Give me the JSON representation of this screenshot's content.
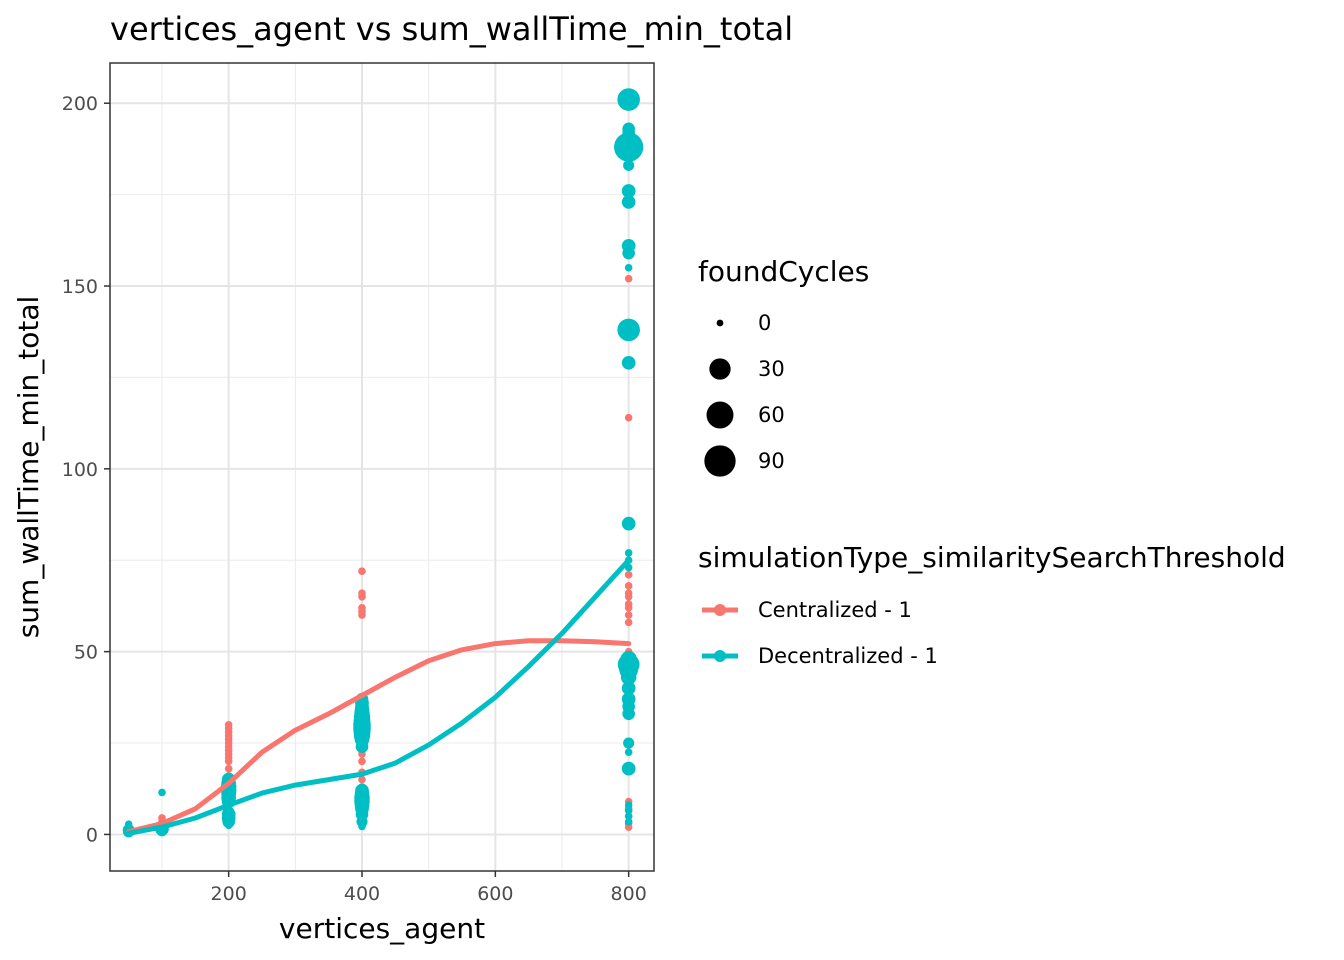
{
  "chart_data": {
    "type": "scatter",
    "title": "vertices_agent  vs  sum_wallTime_min_total",
    "xlabel": "vertices_agent",
    "ylabel": "sum_wallTime_min_total",
    "xlim": [
      22,
      838
    ],
    "ylim": [
      -10,
      211
    ],
    "xticks": [
      200,
      400,
      600,
      800
    ],
    "yticks": [
      0,
      50,
      100,
      150,
      200
    ],
    "grid": true,
    "legend_position": "right",
    "size_legend": {
      "title": "foundCycles",
      "entries": [
        {
          "label": "0",
          "value": 0
        },
        {
          "label": "30",
          "value": 30
        },
        {
          "label": "60",
          "value": 60
        },
        {
          "label": "90",
          "value": 90
        }
      ]
    },
    "color_legend": {
      "title": "simulationType_similaritySearchThreshold"
    },
    "series": [
      {
        "name": "Centralized - 1",
        "color": "#F8766D",
        "points": [
          [
            50,
            0.5,
            0
          ],
          [
            50,
            1.2,
            0
          ],
          [
            100,
            2.5,
            0
          ],
          [
            100,
            3.5,
            0
          ],
          [
            100,
            4.5,
            0
          ],
          [
            200,
            8,
            0
          ],
          [
            200,
            10,
            0
          ],
          [
            200,
            12,
            0
          ],
          [
            200,
            14,
            0
          ],
          [
            200,
            16,
            0
          ],
          [
            200,
            18,
            0
          ],
          [
            200,
            20,
            0
          ],
          [
            200,
            21,
            0
          ],
          [
            200,
            22,
            0
          ],
          [
            200,
            23,
            0
          ],
          [
            200,
            24,
            0
          ],
          [
            200,
            25,
            0
          ],
          [
            200,
            26,
            0
          ],
          [
            200,
            27,
            0
          ],
          [
            200,
            28,
            0
          ],
          [
            200,
            29,
            0
          ],
          [
            200,
            30,
            0
          ],
          [
            400,
            13,
            0
          ],
          [
            400,
            15,
            0
          ],
          [
            400,
            17,
            0
          ],
          [
            400,
            20,
            0
          ],
          [
            400,
            22,
            0
          ],
          [
            400,
            25,
            0
          ],
          [
            400,
            35,
            0
          ],
          [
            400,
            36,
            0
          ],
          [
            400,
            37,
            0
          ],
          [
            400,
            60,
            0
          ],
          [
            400,
            61,
            0
          ],
          [
            400,
            62,
            0
          ],
          [
            400,
            65,
            0
          ],
          [
            400,
            66,
            0
          ],
          [
            400,
            72,
            0
          ],
          [
            800,
            2,
            0
          ],
          [
            800,
            3,
            0
          ],
          [
            800,
            5,
            0
          ],
          [
            800,
            7,
            0
          ],
          [
            800,
            9,
            0
          ],
          [
            800,
            44,
            0
          ],
          [
            800,
            46,
            0
          ],
          [
            800,
            50,
            0
          ],
          [
            800,
            58,
            0
          ],
          [
            800,
            60,
            0
          ],
          [
            800,
            62,
            0
          ],
          [
            800,
            63,
            0
          ],
          [
            800,
            65,
            0
          ],
          [
            800,
            66,
            0
          ],
          [
            800,
            68,
            0
          ],
          [
            800,
            71,
            0
          ],
          [
            800,
            114,
            0
          ],
          [
            800,
            152,
            0
          ]
        ],
        "smooth": [
          [
            50,
            0.8
          ],
          [
            100,
            3
          ],
          [
            150,
            7
          ],
          [
            200,
            14
          ],
          [
            250,
            22.5
          ],
          [
            300,
            28.5
          ],
          [
            350,
            33
          ],
          [
            400,
            38
          ],
          [
            450,
            43
          ],
          [
            500,
            47.5
          ],
          [
            550,
            50.5
          ],
          [
            600,
            52.2
          ],
          [
            650,
            53
          ],
          [
            700,
            53
          ],
          [
            750,
            52.7
          ],
          [
            800,
            52.2
          ]
        ]
      },
      {
        "name": "Decentralized - 1",
        "color": "#00BFC4",
        "points": [
          [
            50,
            0.3,
            0
          ],
          [
            50,
            0.7,
            2
          ],
          [
            50,
            1.2,
            3
          ],
          [
            50,
            2.8,
            0
          ],
          [
            100,
            1,
            2
          ],
          [
            100,
            1.5,
            6
          ],
          [
            100,
            2,
            4
          ],
          [
            100,
            11.5,
            0
          ],
          [
            200,
            2.5,
            0
          ],
          [
            200,
            3.5,
            4
          ],
          [
            200,
            4.5,
            6
          ],
          [
            200,
            5.5,
            6
          ],
          [
            200,
            6,
            3
          ],
          [
            200,
            9,
            6
          ],
          [
            200,
            10,
            8
          ],
          [
            200,
            11,
            8
          ],
          [
            200,
            12,
            10
          ],
          [
            200,
            13,
            10
          ],
          [
            200,
            14,
            8
          ],
          [
            200,
            15,
            6
          ],
          [
            400,
            2.2,
            0
          ],
          [
            400,
            3.5,
            2
          ],
          [
            400,
            5.5,
            4
          ],
          [
            400,
            7,
            6
          ],
          [
            400,
            8,
            8
          ],
          [
            400,
            9,
            10
          ],
          [
            400,
            10,
            10
          ],
          [
            400,
            11,
            8
          ],
          [
            400,
            12,
            6
          ],
          [
            400,
            24,
            4
          ],
          [
            400,
            26,
            8
          ],
          [
            400,
            27,
            12
          ],
          [
            400,
            28,
            14
          ],
          [
            400,
            29,
            16
          ],
          [
            400,
            30,
            16
          ],
          [
            400,
            31,
            14
          ],
          [
            400,
            32,
            12
          ],
          [
            400,
            33,
            10
          ],
          [
            400,
            34,
            8
          ],
          [
            400,
            35,
            6
          ],
          [
            400,
            36,
            6
          ],
          [
            400,
            37,
            4
          ],
          [
            800,
            3.5,
            0
          ],
          [
            800,
            5,
            0
          ],
          [
            800,
            6.5,
            0
          ],
          [
            800,
            8,
            0
          ],
          [
            800,
            18,
            6
          ],
          [
            800,
            22.5,
            0
          ],
          [
            800,
            25,
            2
          ],
          [
            800,
            33,
            4
          ],
          [
            800,
            35,
            4
          ],
          [
            800,
            37,
            6
          ],
          [
            800,
            40,
            6
          ],
          [
            800,
            43,
            10
          ],
          [
            800,
            45,
            20
          ],
          [
            800,
            46.5,
            32
          ],
          [
            800,
            48,
            12
          ],
          [
            800,
            73,
            0
          ],
          [
            800,
            75,
            0
          ],
          [
            800,
            77,
            0
          ],
          [
            800,
            85,
            6
          ],
          [
            800,
            129,
            6
          ],
          [
            800,
            138,
            36
          ],
          [
            800,
            155,
            0
          ],
          [
            800,
            159,
            4
          ],
          [
            800,
            161,
            6
          ],
          [
            800,
            173,
            6
          ],
          [
            800,
            176,
            6
          ],
          [
            800,
            183,
            2
          ],
          [
            800,
            188,
            75
          ],
          [
            800,
            192,
            4
          ],
          [
            800,
            193,
            4
          ],
          [
            800,
            201,
            36
          ]
        ],
        "smooth": [
          [
            50,
            0.3
          ],
          [
            100,
            2
          ],
          [
            150,
            4.5
          ],
          [
            200,
            8
          ],
          [
            250,
            11.3
          ],
          [
            300,
            13.5
          ],
          [
            350,
            15
          ],
          [
            400,
            16.5
          ],
          [
            450,
            19.5
          ],
          [
            500,
            24.5
          ],
          [
            550,
            30.5
          ],
          [
            600,
            37.5
          ],
          [
            650,
            46
          ],
          [
            700,
            55
          ],
          [
            750,
            65
          ],
          [
            800,
            75
          ]
        ]
      }
    ]
  }
}
